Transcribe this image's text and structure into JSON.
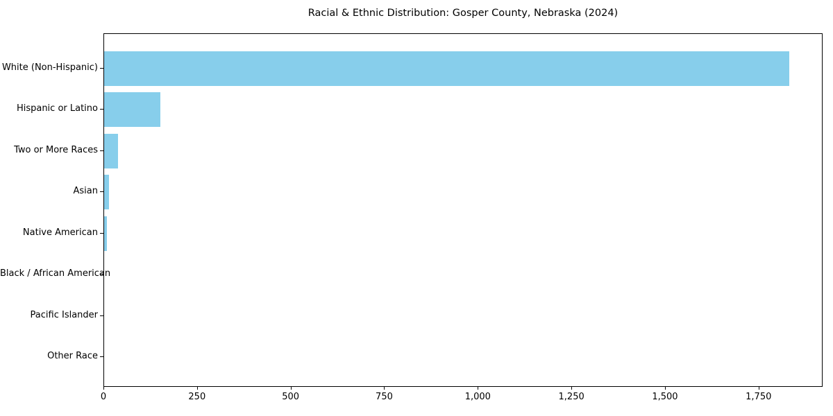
{
  "chart_data": {
    "type": "bar",
    "orientation": "horizontal",
    "title": "Racial & Ethnic Distribution: Gosper County, Nebraska (2024)",
    "categories": [
      "White (Non-Hispanic)",
      "Hispanic or Latino",
      "Two or More Races",
      "Asian",
      "Native American",
      "Black / African American",
      "Pacific Islander",
      "Other Race"
    ],
    "values": [
      1830,
      150,
      37,
      13,
      8,
      0,
      0,
      0
    ],
    "xlabel": "",
    "ylabel": "",
    "xlim": [
      0,
      1921
    ],
    "xticks": [
      {
        "value": 0,
        "label": "0"
      },
      {
        "value": 250,
        "label": "250"
      },
      {
        "value": 500,
        "label": "500"
      },
      {
        "value": 750,
        "label": "750"
      },
      {
        "value": 1000,
        "label": "1,000"
      },
      {
        "value": 1250,
        "label": "1,250"
      },
      {
        "value": 1500,
        "label": "1,500"
      },
      {
        "value": 1750,
        "label": "1,750"
      }
    ],
    "bar_color": "#87CEEB",
    "grid": false,
    "legend": null
  }
}
